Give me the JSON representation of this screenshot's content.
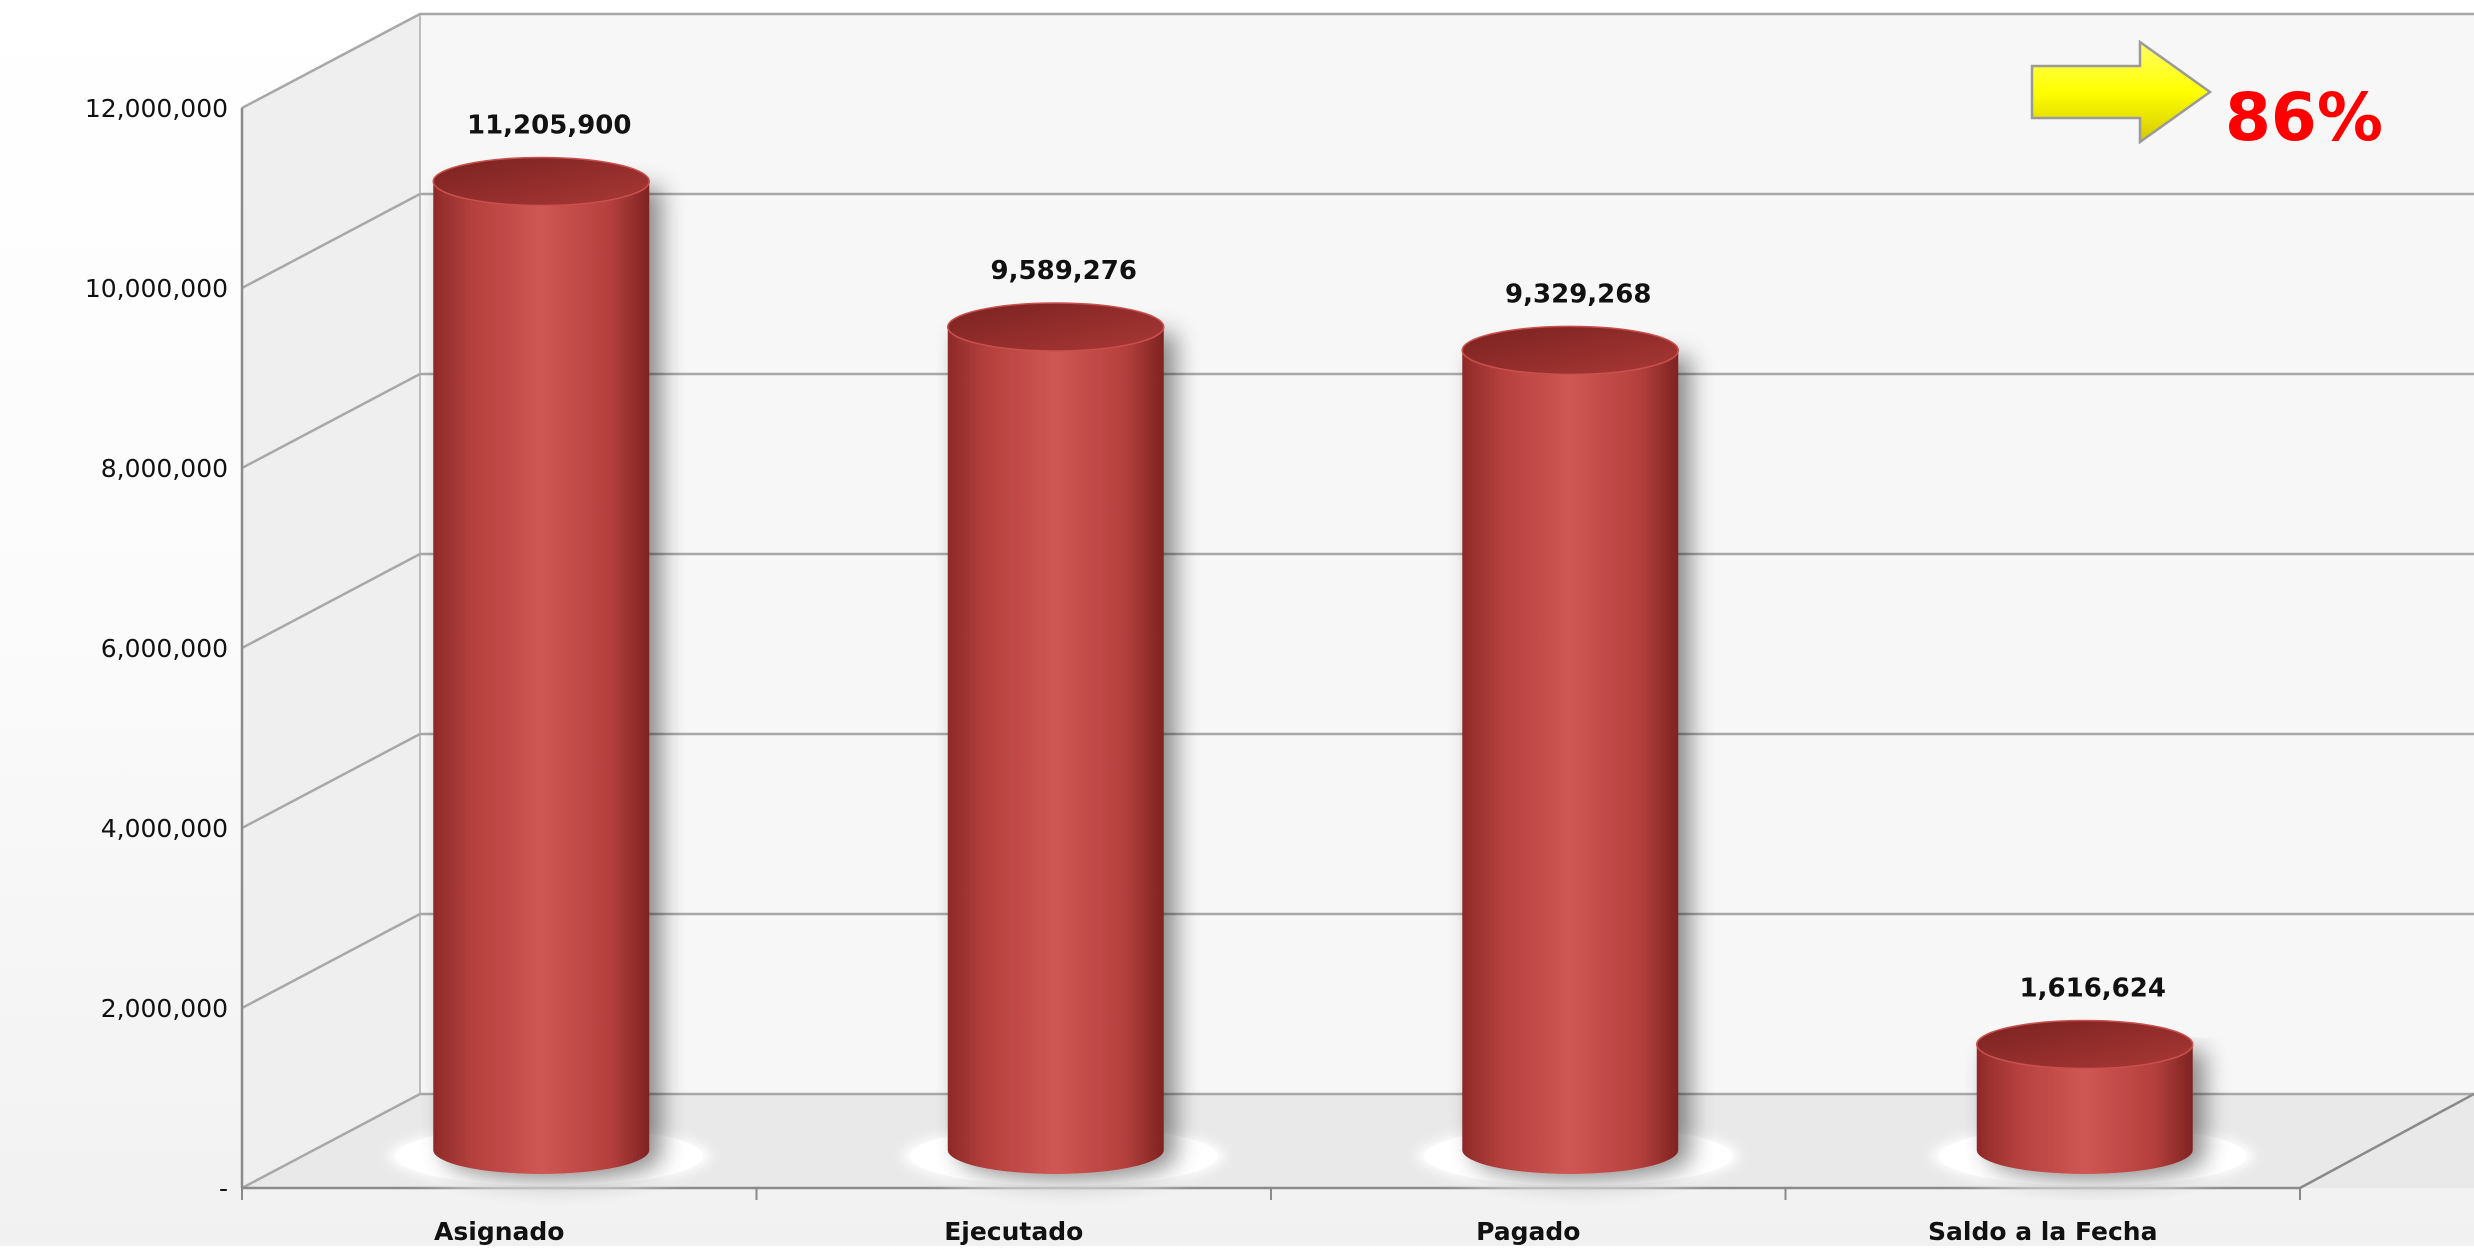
{
  "chart_data": {
    "type": "bar",
    "style": "3d-cylinder",
    "categories": [
      "Asignado",
      "Ejecutado",
      "Pagado",
      "Saldo a la Fecha"
    ],
    "values": [
      11205900,
      9589276,
      9329268,
      1616624
    ],
    "value_labels": [
      "11,205,900",
      "9,589,276",
      "9,329,268",
      "1,616,624"
    ],
    "ylim": [
      0,
      12000000
    ],
    "y_ticks": [
      0,
      2000000,
      4000000,
      6000000,
      8000000,
      10000000,
      12000000
    ],
    "y_tick_labels": [
      "-",
      "2,000,000",
      "4,000,000",
      "6,000,000",
      "8,000,000",
      "10,000,000",
      "12,000,000"
    ],
    "grid": true,
    "legend": "none",
    "title": "",
    "xlabel": "",
    "ylabel": "",
    "bar_color": "#c0504d",
    "annotation": {
      "text": "86%",
      "color": "#ff0000",
      "arrow_color": "#ffff00",
      "arrow_icon": "right-arrow-icon"
    }
  }
}
